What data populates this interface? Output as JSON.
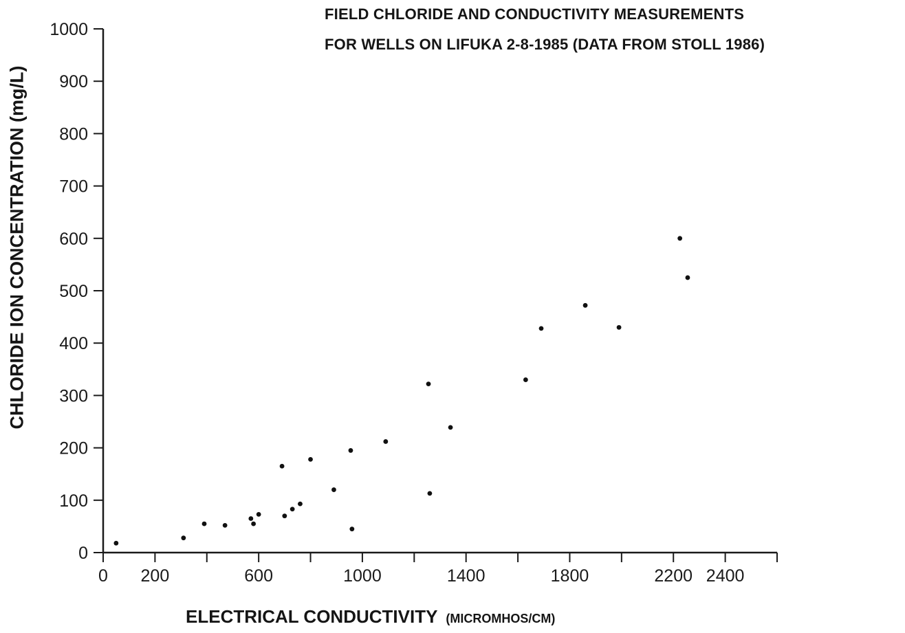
{
  "chart_data": {
    "type": "scatter",
    "title_lines": [
      "FIELD CHLORIDE AND CONDUCTIVITY MEASUREMENTS",
      "FOR WELLS ON LIFUKA 2-8-1985 (DATA FROM STOLL 1986)"
    ],
    "xlabel": "ELECTRICAL CONDUCTIVITY",
    "xlabel_unit": "(MICROMHOS/CM)",
    "ylabel": "CHLORIDE ION CONCENTRATION (mg/L)",
    "xlim": [
      0,
      2600
    ],
    "ylim": [
      0,
      1000
    ],
    "x_ticks": [
      0,
      200,
      600,
      1000,
      1400,
      1800,
      2200,
      2400
    ],
    "x_tick_labels": [
      "0",
      "200",
      "600",
      "1000",
      "1400",
      "1800",
      "2200",
      "2400"
    ],
    "y_ticks": [
      0,
      100,
      200,
      300,
      400,
      500,
      600,
      700,
      800,
      900,
      1000
    ],
    "y_tick_labels": [
      "0",
      "100",
      "200",
      "300",
      "400",
      "500",
      "600",
      "700",
      "800",
      "900",
      "1000"
    ],
    "grid": false,
    "legend": "none",
    "point_color": "#111111",
    "points": [
      {
        "x": 50,
        "y": 18
      },
      {
        "x": 310,
        "y": 28
      },
      {
        "x": 390,
        "y": 55
      },
      {
        "x": 470,
        "y": 52
      },
      {
        "x": 570,
        "y": 65
      },
      {
        "x": 580,
        "y": 55
      },
      {
        "x": 600,
        "y": 73
      },
      {
        "x": 690,
        "y": 165
      },
      {
        "x": 700,
        "y": 70
      },
      {
        "x": 730,
        "y": 83
      },
      {
        "x": 760,
        "y": 93
      },
      {
        "x": 800,
        "y": 178
      },
      {
        "x": 890,
        "y": 120
      },
      {
        "x": 955,
        "y": 195
      },
      {
        "x": 960,
        "y": 45
      },
      {
        "x": 1090,
        "y": 212
      },
      {
        "x": 1255,
        "y": 322
      },
      {
        "x": 1260,
        "y": 113
      },
      {
        "x": 1340,
        "y": 239
      },
      {
        "x": 1630,
        "y": 330
      },
      {
        "x": 1690,
        "y": 428
      },
      {
        "x": 1860,
        "y": 472
      },
      {
        "x": 1990,
        "y": 430
      },
      {
        "x": 2225,
        "y": 600
      },
      {
        "x": 2255,
        "y": 525
      }
    ]
  }
}
